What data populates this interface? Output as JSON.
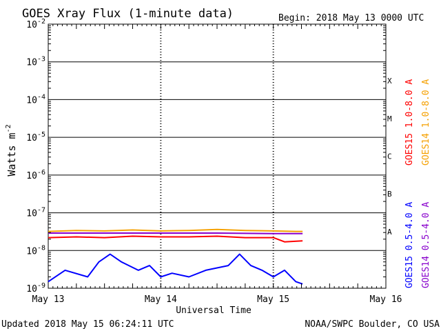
{
  "chart_data": {
    "type": "line",
    "title": "GOES Xray Flux (1-minute data)",
    "begin": "Begin:  2018 May 13 0000 UTC",
    "xlabel": "Universal Time",
    "ylabel_base": "Watts m",
    "ylabel_exp": "-2",
    "x_ticks": [
      "May 13",
      "May 14",
      "May 15",
      "May 16"
    ],
    "x_range_days": [
      0,
      3
    ],
    "y_scale": "log",
    "y_range": [
      1e-09,
      0.01
    ],
    "y_ticks": [
      {
        "value": 0.01,
        "base": "10",
        "exp": "-2"
      },
      {
        "value": 0.001,
        "base": "10",
        "exp": "-3"
      },
      {
        "value": 0.0001,
        "base": "10",
        "exp": "-4"
      },
      {
        "value": 1e-05,
        "base": "10",
        "exp": "-5"
      },
      {
        "value": 1e-06,
        "base": "10",
        "exp": "-6"
      },
      {
        "value": 1e-07,
        "base": "10",
        "exp": "-7"
      },
      {
        "value": 1e-08,
        "base": "10",
        "exp": "-8"
      },
      {
        "value": 1e-09,
        "base": "10",
        "exp": "-9"
      }
    ],
    "flare_classes": [
      {
        "label": "X",
        "value": 0.000316
      },
      {
        "label": "M",
        "value": 3.16e-05
      },
      {
        "label": "C",
        "value": 3.16e-06
      },
      {
        "label": "B",
        "value": 3.16e-07
      },
      {
        "label": "A",
        "value": 3.16e-08
      }
    ],
    "grid": true,
    "series": [
      {
        "name": "GOES14 1.0-8.0 A",
        "color": "#f5a000",
        "points": [
          [
            0.0,
            3.2e-08
          ],
          [
            0.25,
            3.4e-08
          ],
          [
            0.5,
            3.3e-08
          ],
          [
            0.75,
            3.5e-08
          ],
          [
            1.0,
            3.3e-08
          ],
          [
            1.25,
            3.4e-08
          ],
          [
            1.5,
            3.6e-08
          ],
          [
            1.75,
            3.4e-08
          ],
          [
            2.0,
            3.3e-08
          ],
          [
            2.2,
            3.2e-08
          ],
          [
            2.26,
            3.2e-08
          ]
        ]
      },
      {
        "name": "GOES15 1.0-8.0 A",
        "color": "#ff0000",
        "points": [
          [
            0.0,
            2.2e-08
          ],
          [
            0.25,
            2.3e-08
          ],
          [
            0.5,
            2.2e-08
          ],
          [
            0.75,
            2.4e-08
          ],
          [
            1.0,
            2.3e-08
          ],
          [
            1.25,
            2.3e-08
          ],
          [
            1.5,
            2.4e-08
          ],
          [
            1.75,
            2.2e-08
          ],
          [
            2.0,
            2.2e-08
          ],
          [
            2.1,
            1.7e-08
          ],
          [
            2.26,
            1.8e-08
          ]
        ]
      },
      {
        "name": "GOES14 0.5-4.0 A",
        "color": "#8800cc",
        "points": [
          [
            0.0,
            2.9e-08
          ],
          [
            0.5,
            2.9e-08
          ],
          [
            1.0,
            2.9e-08
          ],
          [
            1.5,
            2.9e-08
          ],
          [
            2.0,
            2.8e-08
          ],
          [
            2.26,
            2.8e-08
          ]
        ]
      },
      {
        "name": "GOES15 0.5-4.0 A",
        "color": "#0000ff",
        "points": [
          [
            0.0,
            1.5e-09
          ],
          [
            0.15,
            3e-09
          ],
          [
            0.35,
            2e-09
          ],
          [
            0.45,
            5e-09
          ],
          [
            0.55,
            8e-09
          ],
          [
            0.65,
            5e-09
          ],
          [
            0.8,
            3e-09
          ],
          [
            0.9,
            4e-09
          ],
          [
            1.0,
            2e-09
          ],
          [
            1.1,
            2.5e-09
          ],
          [
            1.25,
            2e-09
          ],
          [
            1.4,
            3e-09
          ],
          [
            1.6,
            4e-09
          ],
          [
            1.7,
            8e-09
          ],
          [
            1.8,
            4e-09
          ],
          [
            1.9,
            3e-09
          ],
          [
            2.0,
            2e-09
          ],
          [
            2.1,
            3e-09
          ],
          [
            2.2,
            1.5e-09
          ],
          [
            2.26,
            1.3e-09
          ]
        ]
      }
    ]
  },
  "footer": {
    "updated": "Updated 2018 May 15 06:24:11 UTC",
    "source": "NOAA/SWPC Boulder, CO USA"
  }
}
